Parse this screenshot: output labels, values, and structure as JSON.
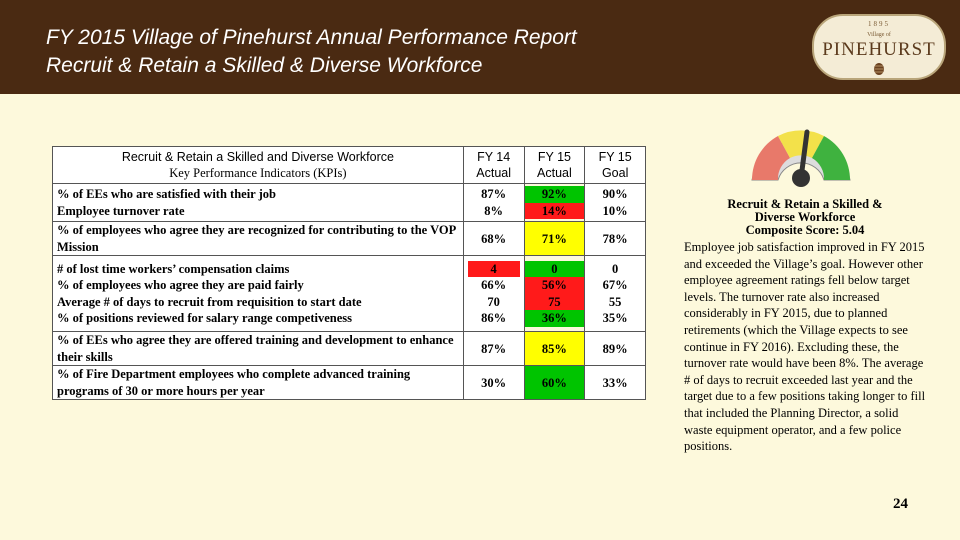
{
  "header": {
    "title_line1": "FY 2015 Village of Pinehurst Annual Performance Report",
    "title_line2": "Recruit & Retain a Skilled & Diverse Workforce"
  },
  "logo": {
    "year": "1895",
    "small_text": "Village of",
    "name": "PINEHURST",
    "icon": "pine-cone-icon"
  },
  "table": {
    "header": {
      "title": "Recruit & Retain a Skilled and Diverse Workforce",
      "subtitle": "Key Performance Indicators (KPIs)",
      "columns": [
        {
          "line1": "FY 14",
          "line2": "Actual"
        },
        {
          "line1": "FY 15",
          "line2": "Actual"
        },
        {
          "line1": "FY 15",
          "line2": "Goal"
        }
      ]
    },
    "groups": [
      {
        "indicators": [
          "% of EEs who are satisfied with their job",
          "Employee turnover rate"
        ],
        "fy14": [
          "87%",
          "8%"
        ],
        "fy15": [
          "92%",
          "14%"
        ],
        "goal": [
          "90%",
          "10%"
        ],
        "fy15_colors": [
          "green",
          "red"
        ]
      },
      {
        "indicators": [
          "% of employees who agree they are recognized for contributing to the VOP Mission"
        ],
        "fy14": [
          "68%"
        ],
        "fy15": [
          "71%"
        ],
        "goal": [
          "78%"
        ],
        "fy15_colors": [
          "yellow"
        ]
      },
      {
        "indicators": [
          "# of lost time workers’ compensation claims",
          "% of employees who agree they are paid fairly",
          "Average # of days to recruit from requisition to start date",
          "% of positions reviewed for salary range competiveness"
        ],
        "fy14": [
          "4",
          "66%",
          "70",
          "86%"
        ],
        "fy15": [
          "0",
          "56%",
          "75",
          "36%"
        ],
        "goal": [
          "0",
          "67%",
          "55",
          "35%"
        ],
        "fy15_colors": [
          "green",
          "red",
          "red",
          "green"
        ]
      },
      {
        "indicators": [
          "% of EEs who agree they are offered training and development to enhance their skills"
        ],
        "fy14": [
          "87%"
        ],
        "fy15": [
          "85%"
        ],
        "goal": [
          "89%"
        ],
        "fy15_colors": [
          "yellow"
        ]
      },
      {
        "indicators": [
          "% of Fire Department employees who complete advanced training programs of 30 or more hours per year"
        ],
        "fy14": [
          "30%"
        ],
        "fy15": [
          "60%"
        ],
        "goal": [
          "33%"
        ],
        "fy15_colors": [
          "green"
        ]
      }
    ],
    "colors": {
      "green": "#00c400",
      "yellow": "#ffff00",
      "red": "#ff1a1a"
    }
  },
  "gauge": {
    "icon": "speedometer-gauge-icon",
    "level": "green-left"
  },
  "summary": {
    "title_line1": "Recruit & Retain a Skilled  &",
    "title_line2": "Diverse Workforce",
    "score_line": "Composite Score:  5.04",
    "body": "Employee job satisfaction improved in FY 2015 and exceeded the Village’s goal.  However other employee agreement ratings fell below target levels.  The turnover rate also increased considerably in FY 2015, due to planned retirements (which the Village expects to see continue in FY 2016).  Excluding these, the turnover rate would have been 8%.  The average # of days to recruit exceeded last year and the target due to a few positions taking longer to fill that included the Planning Director, a solid waste equipment operator, and a few police positions."
  },
  "page_number": "24"
}
